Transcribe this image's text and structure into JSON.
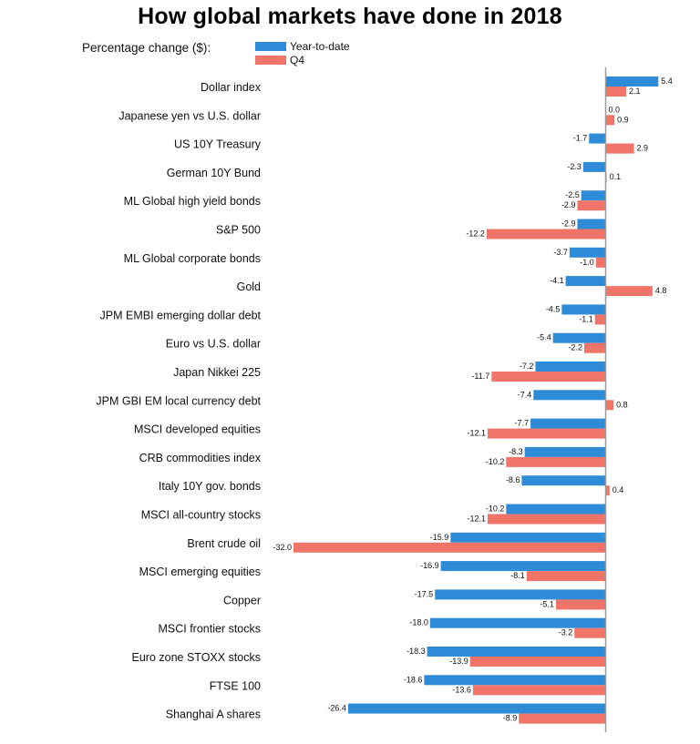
{
  "chart_data": {
    "type": "bar",
    "title": "How global markets have done in 2018",
    "subtitle": "Percentage change ($):",
    "orientation": "horizontal",
    "categories": [
      "Dollar index",
      "Japanese yen vs U.S. dollar",
      "US 10Y Treasury",
      "German 10Y Bund",
      "ML Global high yield bonds",
      "S&P 500",
      "ML Global corporate bonds",
      "Gold",
      "JPM EMBI emerging dollar debt",
      "Euro vs U.S. dollar",
      "Japan Nikkei 225",
      "JPM GBI EM local currency debt",
      "MSCI developed equities",
      "CRB commodities index",
      "Italy 10Y gov. bonds",
      "MSCI all-country stocks",
      "Brent crude oil",
      "MSCI emerging equities",
      "Copper",
      "MSCI frontier stocks",
      "Euro zone STOXX stocks",
      "FTSE 100",
      "Shanghai A shares"
    ],
    "series": [
      {
        "name": "Year-to-date",
        "color": "#2e8bd8",
        "values": [
          5.4,
          0.0,
          -1.7,
          -2.3,
          -2.5,
          -2.9,
          -3.7,
          -4.1,
          -4.5,
          -5.4,
          -7.2,
          -7.4,
          -7.7,
          -8.3,
          -8.6,
          -10.2,
          -15.9,
          -16.9,
          -17.5,
          -18.0,
          -18.3,
          -18.6,
          -26.4
        ]
      },
      {
        "name": "Q4",
        "color": "#f07468",
        "values": [
          2.1,
          0.9,
          2.9,
          0.1,
          -2.9,
          -12.2,
          -1.0,
          4.8,
          -1.1,
          -2.2,
          -11.7,
          0.8,
          -12.1,
          -10.2,
          0.4,
          -12.1,
          -32.0,
          -8.1,
          -5.1,
          -3.2,
          -13.9,
          -13.6,
          -8.9
        ]
      }
    ],
    "value_labels": {
      "Year-to-date": [
        "5.4",
        "0.0",
        "-1.7",
        "-2.3",
        "-2.5",
        "-2.9",
        "-3.7",
        "-4.1",
        "-4.5",
        "-5.4",
        "-7.2",
        "-7.4",
        "-7.7",
        "-8.3",
        "-8.6",
        "-10.2",
        "-15.9",
        "-16.9",
        "-17.5",
        "-18.0",
        "-18.3",
        "-18.6",
        "-26.4"
      ],
      "Q4": [
        "2.1",
        "0.9",
        "2.9",
        "0.1",
        "-2.9",
        "-12.2",
        "-1.0",
        "4.8",
        "-1.1",
        "-2.2",
        "-11.7",
        "0.8",
        "-12.1",
        "-10.2",
        "0.4",
        "-12.1",
        "-32.0",
        "-8.1",
        "-5.1",
        "-3.2",
        "-13.9",
        "-13.6",
        "-8.9"
      ]
    },
    "xlim": [
      -32.0,
      5.4
    ],
    "xlabel": "",
    "ylabel": "",
    "grid": false,
    "legend_position": "top-left"
  }
}
